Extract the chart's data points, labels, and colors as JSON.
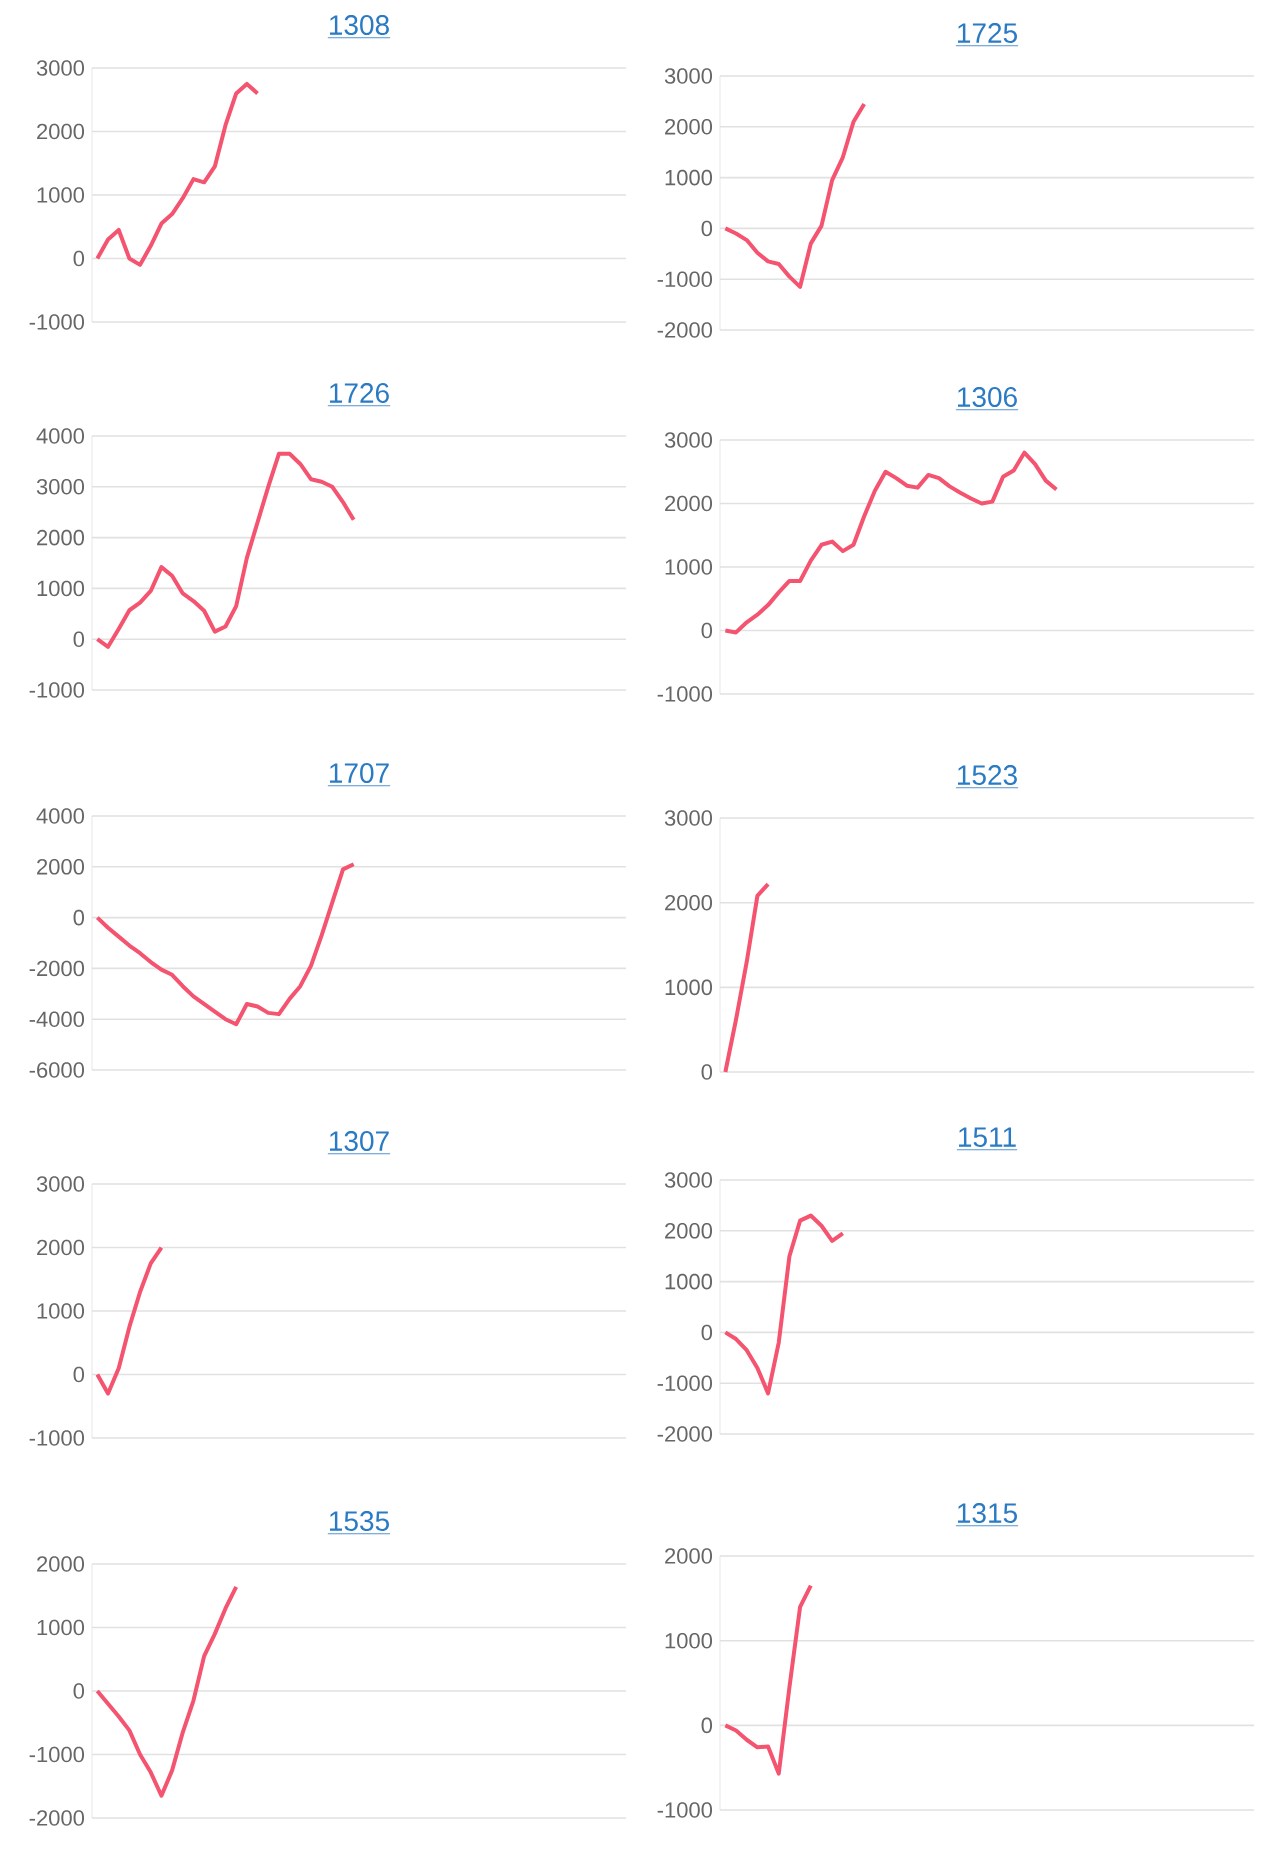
{
  "chart_data": [
    {
      "type": "line",
      "title": "1308",
      "color": "#f4546f",
      "grid": "y",
      "tick_labels": "y",
      "ylim": [
        -1000,
        3000
      ],
      "yticks": [
        -1000,
        0,
        1000,
        2000,
        3000
      ],
      "categories": [
        null,
        null,
        null,
        null,
        null,
        null,
        null,
        null,
        null,
        null,
        null,
        null,
        null,
        null,
        null,
        null,
        null,
        null,
        null,
        null,
        null,
        null,
        null,
        null,
        null,
        null,
        null,
        null,
        null,
        null,
        null,
        null,
        null,
        null,
        null,
        null,
        null,
        null,
        null,
        null,
        null,
        null,
        null,
        null,
        null,
        null,
        null,
        null,
        null,
        null
      ],
      "values": [
        0,
        300,
        450,
        0,
        -100,
        200,
        550,
        700,
        950,
        1250,
        1200,
        1450,
        2100,
        2600,
        2750,
        2600,
        null,
        null,
        null,
        null,
        null,
        null,
        null,
        null,
        null,
        null,
        null,
        null,
        null,
        null,
        null,
        null,
        null,
        null,
        null,
        null,
        null,
        null,
        null,
        null,
        null,
        null,
        null,
        null,
        null,
        null,
        null,
        null,
        null,
        null
      ]
    },
    {
      "type": "line",
      "title": "1725",
      "color": "#f4546f",
      "grid": "y",
      "tick_labels": "y",
      "ylim": [
        -2000,
        3000
      ],
      "yticks": [
        -2000,
        -1000,
        0,
        1000,
        2000,
        3000
      ],
      "categories": [
        null,
        null,
        null,
        null,
        null,
        null,
        null,
        null,
        null,
        null,
        null,
        null,
        null,
        null,
        null,
        null,
        null,
        null,
        null,
        null,
        null,
        null,
        null,
        null,
        null,
        null,
        null,
        null,
        null,
        null,
        null,
        null,
        null,
        null,
        null,
        null,
        null,
        null,
        null,
        null,
        null,
        null,
        null,
        null,
        null,
        null,
        null,
        null,
        null,
        null
      ],
      "values": [
        0,
        -100,
        -230,
        -480,
        -650,
        -700,
        -950,
        -1150,
        -300,
        50,
        950,
        1400,
        2100,
        2450,
        null,
        null,
        null,
        null,
        null,
        null,
        null,
        null,
        null,
        null,
        null,
        null,
        null,
        null,
        null,
        null,
        null,
        null,
        null,
        null,
        null,
        null,
        null,
        null,
        null,
        null,
        null,
        null,
        null,
        null,
        null,
        null,
        null,
        null,
        null,
        null
      ]
    },
    {
      "type": "line",
      "title": "1726",
      "color": "#f4546f",
      "grid": "y",
      "tick_labels": "y",
      "ylim": [
        -1000,
        4000
      ],
      "yticks": [
        -1000,
        0,
        1000,
        2000,
        3000,
        4000
      ],
      "categories": [
        null,
        null,
        null,
        null,
        null,
        null,
        null,
        null,
        null,
        null,
        null,
        null,
        null,
        null,
        null,
        null,
        null,
        null,
        null,
        null,
        null,
        null,
        null,
        null,
        null,
        null,
        null,
        null,
        null,
        null,
        null,
        null,
        null,
        null,
        null,
        null,
        null,
        null,
        null,
        null,
        null,
        null,
        null,
        null,
        null,
        null,
        null,
        null,
        null,
        null
      ],
      "values": [
        0,
        -150,
        200,
        570,
        720,
        950,
        1420,
        1250,
        900,
        750,
        560,
        150,
        250,
        650,
        1600,
        2300,
        3000,
        3650,
        3650,
        3450,
        3150,
        3100,
        3000,
        2700,
        2350,
        null,
        null,
        null,
        null,
        null,
        null,
        null,
        null,
        null,
        null,
        null,
        null,
        null,
        null,
        null,
        null,
        null,
        null,
        null,
        null,
        null,
        null,
        null,
        null,
        null
      ]
    },
    {
      "type": "line",
      "title": "1306",
      "color": "#f4546f",
      "grid": "y",
      "tick_labels": "y",
      "ylim": [
        -1000,
        3000
      ],
      "yticks": [
        -1000,
        0,
        1000,
        2000,
        3000
      ],
      "categories": [
        null,
        null,
        null,
        null,
        null,
        null,
        null,
        null,
        null,
        null,
        null,
        null,
        null,
        null,
        null,
        null,
        null,
        null,
        null,
        null,
        null,
        null,
        null,
        null,
        null,
        null,
        null,
        null,
        null,
        null,
        null,
        null,
        null,
        null,
        null,
        null,
        null,
        null,
        null,
        null,
        null,
        null,
        null,
        null,
        null,
        null,
        null,
        null,
        null,
        null
      ],
      "values": [
        0,
        -30,
        130,
        250,
        400,
        600,
        780,
        780,
        1100,
        1350,
        1400,
        1250,
        1350,
        1800,
        2200,
        2500,
        2400,
        2280,
        2250,
        2450,
        2400,
        2270,
        2170,
        2080,
        2000,
        2030,
        2420,
        2520,
        2800,
        2620,
        2360,
        2220,
        null,
        null,
        null,
        null,
        null,
        null,
        null,
        null,
        null,
        null,
        null,
        null,
        null,
        null,
        null,
        null,
        null,
        null
      ]
    },
    {
      "type": "line",
      "title": "1707",
      "color": "#f4546f",
      "grid": "y",
      "tick_labels": "y",
      "ylim": [
        -6000,
        4000
      ],
      "yticks": [
        -6000,
        -4000,
        -2000,
        0,
        2000,
        4000
      ],
      "categories": [
        null,
        null,
        null,
        null,
        null,
        null,
        null,
        null,
        null,
        null,
        null,
        null,
        null,
        null,
        null,
        null,
        null,
        null,
        null,
        null,
        null,
        null,
        null,
        null,
        null,
        null,
        null,
        null,
        null,
        null,
        null,
        null,
        null,
        null,
        null,
        null,
        null,
        null,
        null,
        null,
        null,
        null,
        null,
        null,
        null,
        null,
        null,
        null,
        null,
        null
      ],
      "values": [
        0,
        -400,
        -750,
        -1100,
        -1400,
        -1750,
        -2050,
        -2250,
        -2700,
        -3100,
        -3400,
        -3700,
        -4000,
        -4200,
        -3400,
        -3500,
        -3750,
        -3800,
        -3200,
        -2700,
        -1900,
        -700,
        600,
        1900,
        2100,
        null,
        null,
        null,
        null,
        null,
        null,
        null,
        null,
        null,
        null,
        null,
        null,
        null,
        null,
        null,
        null,
        null,
        null,
        null,
        null,
        null,
        null,
        null,
        null,
        null
      ]
    },
    {
      "type": "line",
      "title": "1523",
      "color": "#f4546f",
      "grid": "y",
      "tick_labels": "y",
      "ylim": [
        0,
        3000
      ],
      "yticks": [
        0,
        1000,
        2000,
        3000
      ],
      "categories": [
        null,
        null,
        null,
        null,
        null,
        null,
        null,
        null,
        null,
        null,
        null,
        null,
        null,
        null,
        null,
        null,
        null,
        null,
        null,
        null,
        null,
        null,
        null,
        null,
        null,
        null,
        null,
        null,
        null,
        null,
        null,
        null,
        null,
        null,
        null,
        null,
        null,
        null,
        null,
        null,
        null,
        null,
        null,
        null,
        null,
        null,
        null,
        null,
        null,
        null
      ],
      "values": [
        0,
        620,
        1300,
        2080,
        2220,
        null,
        null,
        null,
        null,
        null,
        null,
        null,
        null,
        null,
        null,
        null,
        null,
        null,
        null,
        null,
        null,
        null,
        null,
        null,
        null,
        null,
        null,
        null,
        null,
        null,
        null,
        null,
        null,
        null,
        null,
        null,
        null,
        null,
        null,
        null,
        null,
        null,
        null,
        null,
        null,
        null,
        null,
        null,
        null,
        null
      ]
    },
    {
      "type": "line",
      "title": "1307",
      "color": "#f4546f",
      "grid": "y",
      "tick_labels": "y",
      "ylim": [
        -1000,
        3000
      ],
      "yticks": [
        -1000,
        0,
        1000,
        2000,
        3000
      ],
      "categories": [
        null,
        null,
        null,
        null,
        null,
        null,
        null,
        null,
        null,
        null,
        null,
        null,
        null,
        null,
        null,
        null,
        null,
        null,
        null,
        null,
        null,
        null,
        null,
        null,
        null,
        null,
        null,
        null,
        null,
        null,
        null,
        null,
        null,
        null,
        null,
        null,
        null,
        null,
        null,
        null,
        null,
        null,
        null,
        null,
        null,
        null,
        null,
        null,
        null,
        null
      ],
      "values": [
        0,
        -300,
        100,
        750,
        1300,
        1750,
        2000,
        null,
        null,
        null,
        null,
        null,
        null,
        null,
        null,
        null,
        null,
        null,
        null,
        null,
        null,
        null,
        null,
        null,
        null,
        null,
        null,
        null,
        null,
        null,
        null,
        null,
        null,
        null,
        null,
        null,
        null,
        null,
        null,
        null,
        null,
        null,
        null,
        null,
        null,
        null,
        null,
        null,
        null,
        null
      ]
    },
    {
      "type": "line",
      "title": "1511",
      "color": "#f4546f",
      "grid": "y",
      "tick_labels": "y",
      "ylim": [
        -2000,
        3000
      ],
      "yticks": [
        -2000,
        -1000,
        0,
        1000,
        2000,
        3000
      ],
      "categories": [
        null,
        null,
        null,
        null,
        null,
        null,
        null,
        null,
        null,
        null,
        null,
        null,
        null,
        null,
        null,
        null,
        null,
        null,
        null,
        null,
        null,
        null,
        null,
        null,
        null,
        null,
        null,
        null,
        null,
        null,
        null,
        null,
        null,
        null,
        null,
        null,
        null,
        null,
        null,
        null,
        null,
        null,
        null,
        null,
        null,
        null,
        null,
        null,
        null,
        null
      ],
      "values": [
        0,
        -130,
        -350,
        -700,
        -1200,
        -200,
        1500,
        2200,
        2300,
        2100,
        1800,
        1950,
        null,
        null,
        null,
        null,
        null,
        null,
        null,
        null,
        null,
        null,
        null,
        null,
        null,
        null,
        null,
        null,
        null,
        null,
        null,
        null,
        null,
        null,
        null,
        null,
        null,
        null,
        null,
        null,
        null,
        null,
        null,
        null,
        null,
        null,
        null,
        null,
        null,
        null
      ]
    },
    {
      "type": "line",
      "title": "1535",
      "color": "#f4546f",
      "grid": "y",
      "tick_labels": "y",
      "ylim": [
        -2000,
        2000
      ],
      "yticks": [
        -2000,
        -1000,
        0,
        1000,
        2000
      ],
      "categories": [
        null,
        null,
        null,
        null,
        null,
        null,
        null,
        null,
        null,
        null,
        null,
        null,
        null,
        null,
        null,
        null,
        null,
        null,
        null,
        null,
        null,
        null,
        null,
        null,
        null,
        null,
        null,
        null,
        null,
        null,
        null,
        null,
        null,
        null,
        null,
        null,
        null,
        null,
        null,
        null,
        null,
        null,
        null,
        null,
        null,
        null,
        null,
        null,
        null,
        null
      ],
      "values": [
        0,
        -200,
        -400,
        -620,
        -1000,
        -1280,
        -1650,
        -1250,
        -650,
        -150,
        550,
        900,
        1300,
        1640,
        null,
        null,
        null,
        null,
        null,
        null,
        null,
        null,
        null,
        null,
        null,
        null,
        null,
        null,
        null,
        null,
        null,
        null,
        null,
        null,
        null,
        null,
        null,
        null,
        null,
        null,
        null,
        null,
        null,
        null,
        null,
        null,
        null,
        null,
        null,
        null
      ]
    },
    {
      "type": "line",
      "title": "1315",
      "color": "#f4546f",
      "grid": "y",
      "tick_labels": "y",
      "ylim": [
        -1000,
        2000
      ],
      "yticks": [
        -1000,
        0,
        1000,
        2000
      ],
      "categories": [
        null,
        null,
        null,
        null,
        null,
        null,
        null,
        null,
        null,
        null,
        null,
        null,
        null,
        null,
        null,
        null,
        null,
        null,
        null,
        null,
        null,
        null,
        null,
        null,
        null,
        null,
        null,
        null,
        null,
        null,
        null,
        null,
        null,
        null,
        null,
        null,
        null,
        null,
        null,
        null,
        null,
        null,
        null,
        null,
        null,
        null,
        null,
        null,
        null,
        null
      ],
      "values": [
        0,
        -60,
        -170,
        -260,
        -250,
        -570,
        450,
        1400,
        1650,
        null,
        null,
        null,
        null,
        null,
        null,
        null,
        null,
        null,
        null,
        null,
        null,
        null,
        null,
        null,
        null,
        null,
        null,
        null,
        null,
        null,
        null,
        null,
        null,
        null,
        null,
        null,
        null,
        null,
        null,
        null,
        null,
        null,
        null,
        null,
        null,
        null,
        null,
        null,
        null,
        null
      ]
    }
  ]
}
